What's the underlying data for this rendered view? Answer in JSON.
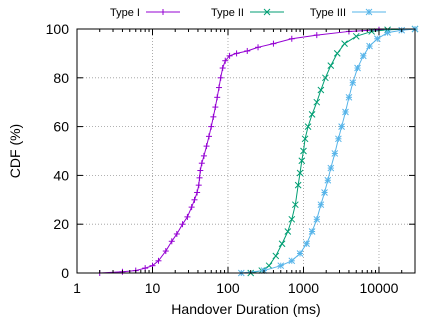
{
  "chart_data": {
    "type": "line",
    "title": "",
    "xlabel": "Handover Duration (ms)",
    "ylabel": "CDF (%)",
    "x_scale": "log",
    "xlim": [
      1,
      30000
    ],
    "ylim": [
      0,
      100
    ],
    "x_ticks": [
      1,
      10,
      100,
      1000,
      10000
    ],
    "x_tick_labels": [
      "1",
      "10",
      "100",
      "1000",
      "10000"
    ],
    "y_ticks": [
      0,
      20,
      40,
      60,
      80,
      100
    ],
    "y_tick_labels": [
      "0",
      "20",
      "40",
      "60",
      "80",
      "100"
    ],
    "grid": true,
    "legend_position": "top",
    "series": [
      {
        "name": "Type I",
        "color": "#9400d3",
        "marker": "plus",
        "points": [
          [
            2,
            0
          ],
          [
            4,
            0.5
          ],
          [
            6,
            1
          ],
          [
            8,
            2
          ],
          [
            10,
            3
          ],
          [
            12,
            5
          ],
          [
            15,
            9
          ],
          [
            18,
            13
          ],
          [
            21,
            16
          ],
          [
            25,
            20
          ],
          [
            29,
            23
          ],
          [
            33,
            27
          ],
          [
            36,
            30
          ],
          [
            39,
            33
          ],
          [
            41,
            36
          ],
          [
            42,
            39
          ],
          [
            43,
            42
          ],
          [
            45,
            45
          ],
          [
            48,
            48
          ],
          [
            52,
            52
          ],
          [
            56,
            56
          ],
          [
            60,
            60
          ],
          [
            64,
            64
          ],
          [
            68,
            68
          ],
          [
            72,
            72
          ],
          [
            76,
            76
          ],
          [
            80,
            80
          ],
          [
            85,
            84
          ],
          [
            92,
            87
          ],
          [
            105,
            89
          ],
          [
            130,
            90
          ],
          [
            180,
            91
          ],
          [
            250,
            92.5
          ],
          [
            400,
            94
          ],
          [
            700,
            96
          ],
          [
            1500,
            97.5
          ],
          [
            4000,
            99
          ],
          [
            10000,
            99.7
          ],
          [
            30000,
            100
          ]
        ]
      },
      {
        "name": "Type II",
        "color": "#009e73",
        "marker": "x",
        "points": [
          [
            200,
            0
          ],
          [
            280,
            1
          ],
          [
            350,
            3
          ],
          [
            430,
            7
          ],
          [
            520,
            12
          ],
          [
            620,
            17
          ],
          [
            700,
            22
          ],
          [
            780,
            28
          ],
          [
            850,
            36
          ],
          [
            900,
            41
          ],
          [
            950,
            46
          ],
          [
            1000,
            50
          ],
          [
            1050,
            55
          ],
          [
            1150,
            60
          ],
          [
            1300,
            65
          ],
          [
            1500,
            70
          ],
          [
            1700,
            75
          ],
          [
            1950,
            80
          ],
          [
            2300,
            85
          ],
          [
            2800,
            90
          ],
          [
            3500,
            94
          ],
          [
            5000,
            97
          ],
          [
            8000,
            99
          ],
          [
            13000,
            99.7
          ],
          [
            30000,
            100
          ]
        ]
      },
      {
        "name": "Type III",
        "color": "#56b4e9",
        "marker": "asterisk",
        "points": [
          [
            150,
            0
          ],
          [
            300,
            1
          ],
          [
            500,
            3
          ],
          [
            700,
            5
          ],
          [
            900,
            8
          ],
          [
            1100,
            12
          ],
          [
            1300,
            17
          ],
          [
            1500,
            22
          ],
          [
            1700,
            28
          ],
          [
            1900,
            33
          ],
          [
            2100,
            38
          ],
          [
            2300,
            43
          ],
          [
            2600,
            49
          ],
          [
            2900,
            55
          ],
          [
            3200,
            60
          ],
          [
            3600,
            66
          ],
          [
            4000,
            72
          ],
          [
            4500,
            78
          ],
          [
            5200,
            84
          ],
          [
            6200,
            89
          ],
          [
            7500,
            93
          ],
          [
            9500,
            96
          ],
          [
            13000,
            98.5
          ],
          [
            20000,
            99.5
          ],
          [
            30000,
            100
          ]
        ]
      }
    ]
  }
}
